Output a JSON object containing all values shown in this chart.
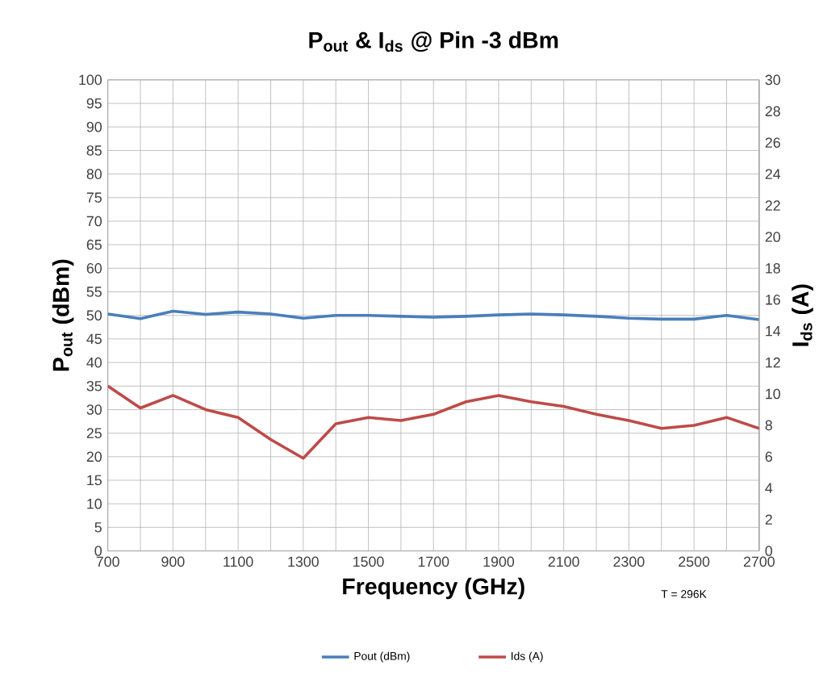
{
  "chart_data": {
    "type": "line",
    "title": "P$_{out}$ & I$_{ds}$ @ Pin -3 dBm",
    "xlabel": "Frequency  (GHz)",
    "ylabel": "P$_{out}$ (dBm)",
    "y2label": "I$_{ds}$ (A)",
    "annotations": [
      "T = 296K"
    ],
    "x": [
      700,
      800,
      900,
      1000,
      1100,
      1200,
      1300,
      1400,
      1500,
      1600,
      1700,
      1800,
      1900,
      2000,
      2100,
      2200,
      2300,
      2400,
      2500,
      2600,
      2700
    ],
    "series": [
      {
        "name": "Pout (dBm)",
        "color": "#4a7ebb",
        "values": [
          50.3,
          49.3,
          50.9,
          50.2,
          50.7,
          50.3,
          49.4,
          50,
          50,
          49.8,
          49.6,
          49.8,
          50.1,
          50.3,
          50.1,
          49.8,
          49.4,
          49.2,
          49.2,
          50,
          49.1
        ]
      },
      {
        "name": "Ids (A)",
        "color": "#be4b48",
        "axis": "y2",
        "values": [
          10.5,
          9.1,
          9.9,
          9.0,
          8.5,
          7.1,
          5.9,
          8.1,
          8.5,
          8.3,
          8.7,
          9.5,
          9.9,
          9.5,
          9.2,
          8.7,
          8.3,
          7.8,
          8.0,
          8.5,
          7.8
        ]
      }
    ],
    "xlim": [
      700,
      2700
    ],
    "xticks": [
      700,
      {
        "value": 800,
        "label": null
      },
      900,
      {
        "value": 1000,
        "label": null
      },
      1100,
      {
        "value": 1200,
        "label": null
      },
      1300,
      {
        "value": 1400,
        "label": null
      },
      1500,
      {
        "value": 1600,
        "label": null
      },
      1700,
      {
        "value": 1800,
        "label": null
      },
      1900,
      {
        "value": 2000,
        "label": null
      },
      2100,
      {
        "value": 2200,
        "label": null
      },
      2300,
      {
        "value": 2400,
        "label": null
      },
      2500,
      {
        "value": 2600,
        "label": null
      },
      2700
    ],
    "ylim": [
      0,
      100
    ],
    "yticks": [
      0,
      5,
      10,
      15,
      20,
      25,
      30,
      35,
      40,
      45,
      50,
      55,
      60,
      65,
      70,
      75,
      80,
      85,
      90,
      95,
      100
    ],
    "y2lim": [
      0,
      30
    ],
    "y2ticks": [
      0,
      2,
      4,
      6,
      8,
      10,
      12,
      14,
      16,
      18,
      20,
      22,
      24,
      26,
      28,
      30
    ],
    "grid": true,
    "legend": "bottom",
    "marker": "none",
    "line_style": "solid"
  }
}
